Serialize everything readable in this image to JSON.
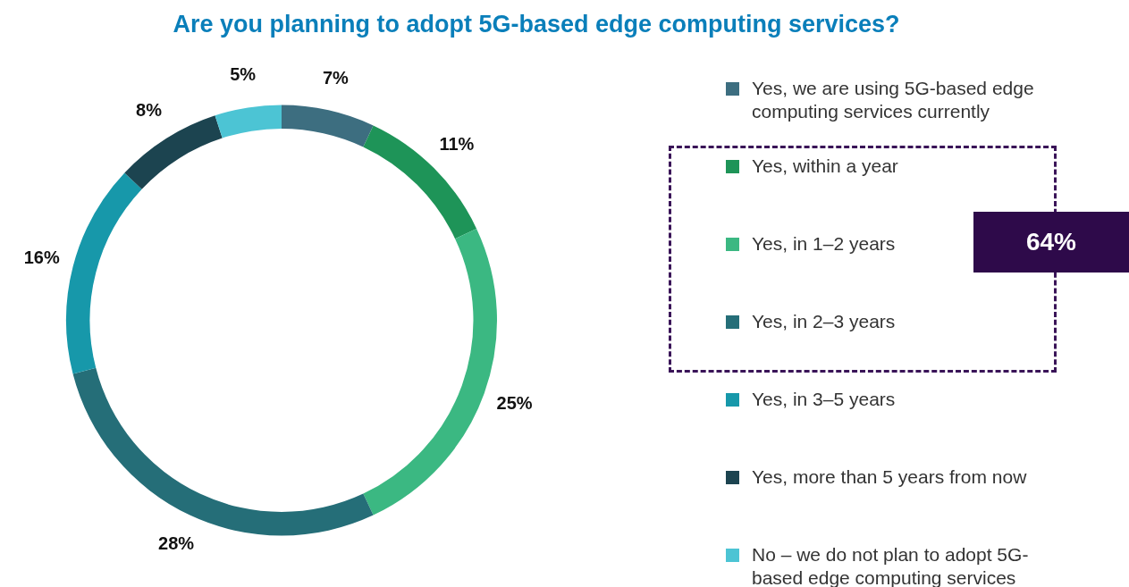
{
  "chart_data": {
    "type": "donut",
    "title": "Are you planning to adopt 5G-based edge computing services?",
    "categories": [
      "Yes, we are using 5G-based edge computing services currently",
      "Yes, within a year",
      "Yes, in 1–2 years",
      "Yes, in 2–3 years",
      "Yes, in 3–5 years",
      "Yes, more than 5 years from now",
      "No – we do not plan to adopt 5G-based edge computing services"
    ],
    "values": [
      7,
      11,
      25,
      28,
      16,
      8,
      5
    ],
    "colors": [
      "#3d6e80",
      "#1e9458",
      "#3bb882",
      "#256e78",
      "#1798aa",
      "#1c4450",
      "#4cc4d4"
    ],
    "value_labels": [
      "7%",
      "11%",
      "25%",
      "28%",
      "16%",
      "8%",
      "5%"
    ],
    "legend": "right",
    "annotations": [
      "64%"
    ]
  }
}
